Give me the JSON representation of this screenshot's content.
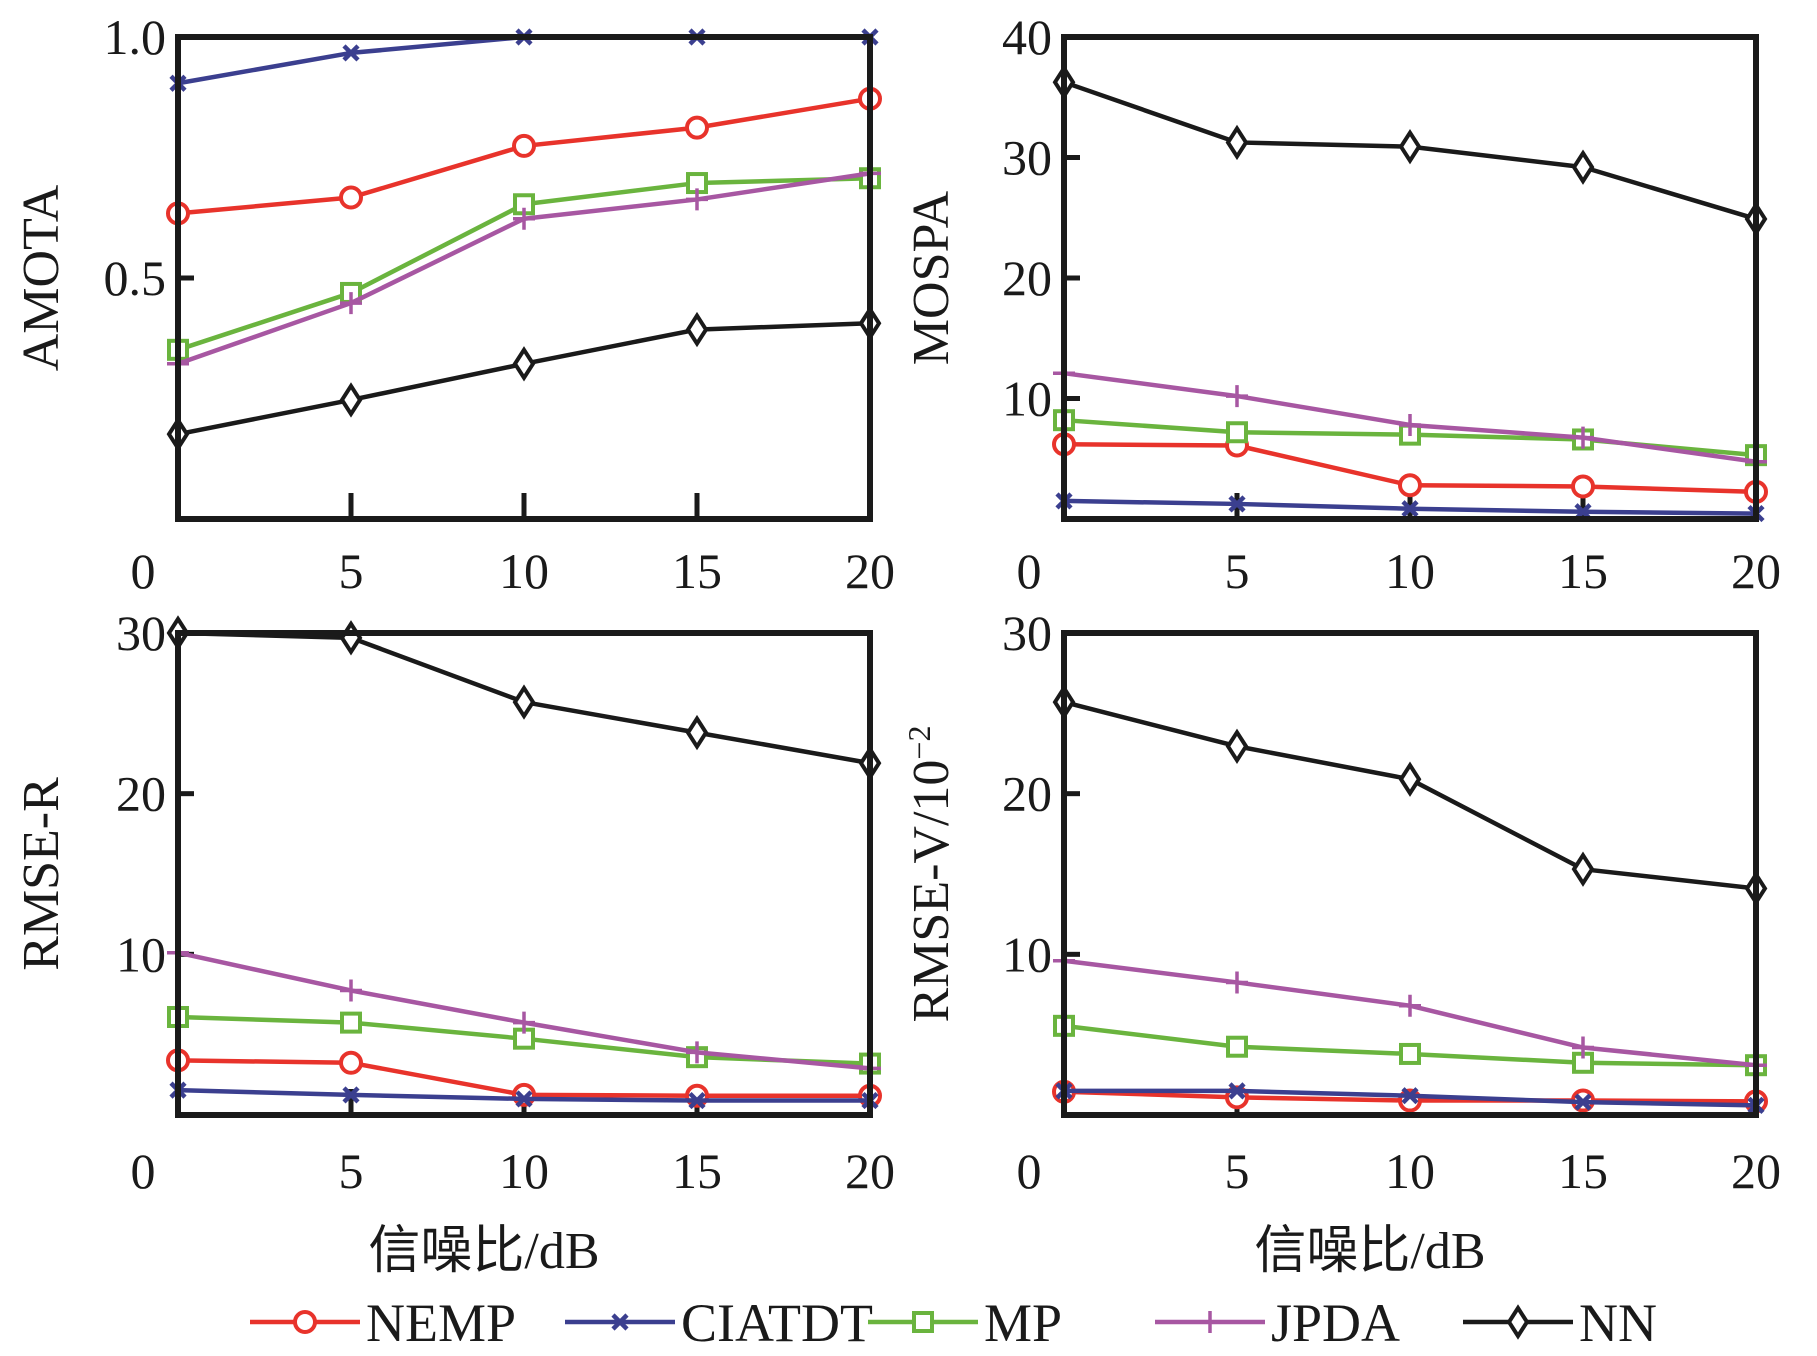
{
  "chart_data": [
    {
      "type": "line",
      "panel": "top-left",
      "title": "",
      "xlabel": "",
      "ylabel": "AMOTA",
      "x": [
        0,
        5,
        10,
        15,
        20
      ],
      "xlim": [
        0,
        20
      ],
      "ylim": [
        0,
        1.0
      ],
      "xticks": [
        "0",
        "5",
        "10",
        "15",
        "20"
      ],
      "yticks": [
        {
          "value": 0.5,
          "label": "0.5"
        },
        {
          "value": 1.0,
          "label": "1.0"
        }
      ],
      "grid": false,
      "series": [
        {
          "name": "NEMP",
          "values": [
            0.634,
            0.667,
            0.774,
            0.812,
            0.872
          ]
        },
        {
          "name": "CIATDT",
          "values": [
            0.904,
            0.967,
            1.0,
            1.0,
            1.0
          ]
        },
        {
          "name": "MP",
          "values": [
            0.351,
            0.469,
            0.653,
            0.697,
            0.707
          ]
        },
        {
          "name": "JPDA",
          "values": [
            0.322,
            0.448,
            0.623,
            0.663,
            0.717
          ]
        },
        {
          "name": "NN",
          "values": [
            0.176,
            0.247,
            0.322,
            0.393,
            0.406
          ]
        }
      ]
    },
    {
      "type": "line",
      "panel": "top-right",
      "title": "",
      "xlabel": "",
      "ylabel": "MOSPA",
      "x": [
        0,
        5,
        10,
        15,
        20
      ],
      "xlim": [
        0,
        20
      ],
      "ylim": [
        0,
        40
      ],
      "xticks": [
        "0",
        "5",
        "10",
        "15",
        "20"
      ],
      "yticks": [
        {
          "value": 10,
          "label": "10"
        },
        {
          "value": 20,
          "label": "20"
        },
        {
          "value": 30,
          "label": "30"
        },
        {
          "value": 40,
          "label": "40"
        }
      ],
      "grid": false,
      "series": [
        {
          "name": "NEMP",
          "values": [
            6.2,
            6.1,
            2.8,
            2.7,
            2.25
          ]
        },
        {
          "name": "CIATDT",
          "values": [
            1.5,
            1.25,
            0.85,
            0.6,
            0.45
          ]
        },
        {
          "name": "MP",
          "values": [
            8.2,
            7.2,
            7.0,
            6.6,
            5.3
          ]
        },
        {
          "name": "JPDA",
          "values": [
            12.1,
            10.2,
            7.8,
            6.75,
            4.75
          ]
        },
        {
          "name": "NN",
          "values": [
            36.25,
            31.25,
            30.9,
            29.2,
            24.9
          ]
        }
      ]
    },
    {
      "type": "line",
      "panel": "bottom-left",
      "title": "",
      "xlabel": "信噪比/dB",
      "ylabel": "RMSE-R",
      "x": [
        0,
        5,
        10,
        15,
        20
      ],
      "xlim": [
        0,
        20
      ],
      "ylim": [
        0,
        30
      ],
      "xticks": [
        "0",
        "5",
        "10",
        "15",
        "20"
      ],
      "yticks": [
        {
          "value": 10,
          "label": "10"
        },
        {
          "value": 20,
          "label": "20"
        },
        {
          "value": 30,
          "label": "30"
        }
      ],
      "grid": false,
      "series": [
        {
          "name": "NEMP",
          "values": [
            3.4,
            3.25,
            1.25,
            1.2,
            1.2
          ]
        },
        {
          "name": "CIATDT",
          "values": [
            1.55,
            1.25,
            1.0,
            0.9,
            0.9
          ]
        },
        {
          "name": "MP",
          "values": [
            6.1,
            5.75,
            4.75,
            3.6,
            3.2
          ]
        },
        {
          "name": "JPDA",
          "values": [
            10.1,
            7.75,
            5.75,
            3.9,
            2.9
          ]
        },
        {
          "name": "NN",
          "values": [
            30.0,
            29.7,
            25.7,
            23.8,
            21.9
          ]
        }
      ]
    },
    {
      "type": "line",
      "panel": "bottom-right",
      "title": "",
      "xlabel": "信噪比/dB",
      "ylabel": "RMSE-V/10",
      "ylabel_superscript": "−2",
      "x": [
        0,
        5,
        10,
        15,
        20
      ],
      "xlim": [
        0,
        20
      ],
      "ylim": [
        0,
        30
      ],
      "xticks": [
        "0",
        "5",
        "10",
        "15",
        "20"
      ],
      "yticks": [
        {
          "value": 10,
          "label": "10"
        },
        {
          "value": 20,
          "label": "20"
        },
        {
          "value": 30,
          "label": "30"
        }
      ],
      "grid": false,
      "series": [
        {
          "name": "NEMP",
          "values": [
            1.45,
            1.1,
            0.9,
            0.9,
            0.85
          ]
        },
        {
          "name": "CIATDT",
          "values": [
            1.5,
            1.5,
            1.2,
            0.8,
            0.6
          ]
        },
        {
          "name": "MP",
          "values": [
            5.55,
            4.25,
            3.8,
            3.25,
            3.1
          ]
        },
        {
          "name": "JPDA",
          "values": [
            9.6,
            8.25,
            6.8,
            4.2,
            3.1
          ]
        },
        {
          "name": "NN",
          "values": [
            25.7,
            22.95,
            20.9,
            15.3,
            14.1
          ]
        }
      ]
    }
  ],
  "legend": {
    "placement": "bottom-center",
    "entries": [
      {
        "name": "NEMP",
        "color": "#e8332b",
        "marker": "circle"
      },
      {
        "name": "CIATDT",
        "color": "#3b3f8f",
        "marker": "x"
      },
      {
        "name": "MP",
        "color": "#6ab43e",
        "marker": "square"
      },
      {
        "name": "JPDA",
        "color": "#a757a2",
        "marker": "plus"
      },
      {
        "name": "NN",
        "color": "#1a1a1a",
        "marker": "diamond"
      }
    ]
  }
}
